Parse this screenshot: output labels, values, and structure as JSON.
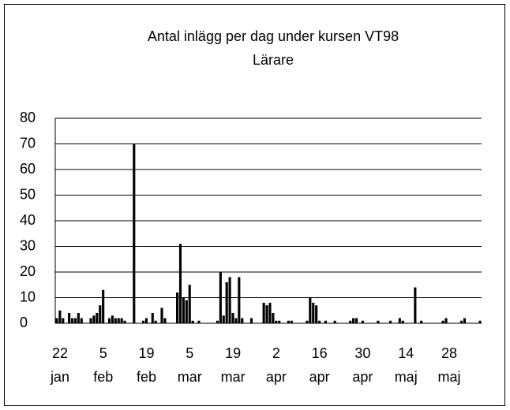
{
  "chart_data": {
    "type": "bar",
    "title": "Antal inlägg per dag under kursen VT98",
    "subtitle": "Lärare",
    "color": "#000000",
    "ylim": [
      0,
      80
    ],
    "yticks": [
      0,
      10,
      20,
      30,
      40,
      50,
      60,
      70,
      80
    ],
    "grid": true,
    "categories": [
      "22 jan",
      null,
      null,
      null,
      null,
      null,
      null,
      null,
      null,
      null,
      null,
      null,
      null,
      null,
      "5 feb",
      null,
      null,
      null,
      null,
      null,
      null,
      null,
      null,
      null,
      null,
      null,
      null,
      null,
      "19 feb",
      null,
      null,
      null,
      null,
      null,
      null,
      null,
      null,
      null,
      null,
      null,
      null,
      null,
      "5 mar",
      null,
      null,
      null,
      null,
      null,
      null,
      null,
      null,
      null,
      null,
      null,
      null,
      null,
      "19 mar",
      null,
      null,
      null,
      null,
      null,
      null,
      null,
      null,
      null,
      null,
      null,
      null,
      null,
      "2 apr",
      null,
      null,
      null,
      null,
      null,
      null,
      null,
      null,
      null,
      null,
      null,
      null,
      null,
      "16 apr",
      null,
      null,
      null,
      null,
      null,
      null,
      null,
      null,
      null,
      null,
      null,
      null,
      null,
      "30 apr",
      null,
      null,
      null,
      null,
      null,
      null,
      null,
      null,
      null,
      null,
      null,
      null,
      null,
      "14 maj",
      null,
      null,
      null,
      null,
      null,
      null,
      null,
      null,
      null,
      null,
      null,
      null,
      null,
      "28 maj",
      null,
      null,
      null,
      null,
      null,
      null,
      null,
      null,
      null,
      null,
      null
    ],
    "values": [
      2,
      5,
      2,
      0,
      4,
      2,
      2,
      4,
      2,
      0,
      0,
      2,
      3,
      4,
      7,
      13,
      0,
      2,
      3,
      2,
      2,
      2,
      1,
      0,
      0,
      70,
      0,
      0,
      1,
      2,
      0,
      4,
      1,
      0,
      6,
      2,
      0,
      0,
      0,
      12,
      31,
      10,
      9,
      15,
      1,
      0,
      1,
      0,
      0,
      0,
      0,
      0,
      1,
      20,
      3,
      16,
      18,
      4,
      2,
      18,
      2,
      0,
      0,
      2,
      0,
      0,
      0,
      8,
      7,
      8,
      4,
      1,
      1,
      0,
      0,
      1,
      1,
      0,
      0,
      0,
      0,
      1,
      10,
      8,
      7,
      1,
      0,
      1,
      0,
      0,
      1,
      0,
      0,
      0,
      0,
      1,
      2,
      2,
      0,
      1,
      0,
      0,
      0,
      0,
      1,
      0,
      0,
      0,
      1,
      0,
      0,
      2,
      1,
      0,
      0,
      0,
      14,
      0,
      1,
      0,
      0,
      0,
      0,
      0,
      0,
      1,
      2,
      0,
      0,
      0,
      0,
      1,
      2,
      0,
      0,
      0,
      0,
      1
    ]
  }
}
